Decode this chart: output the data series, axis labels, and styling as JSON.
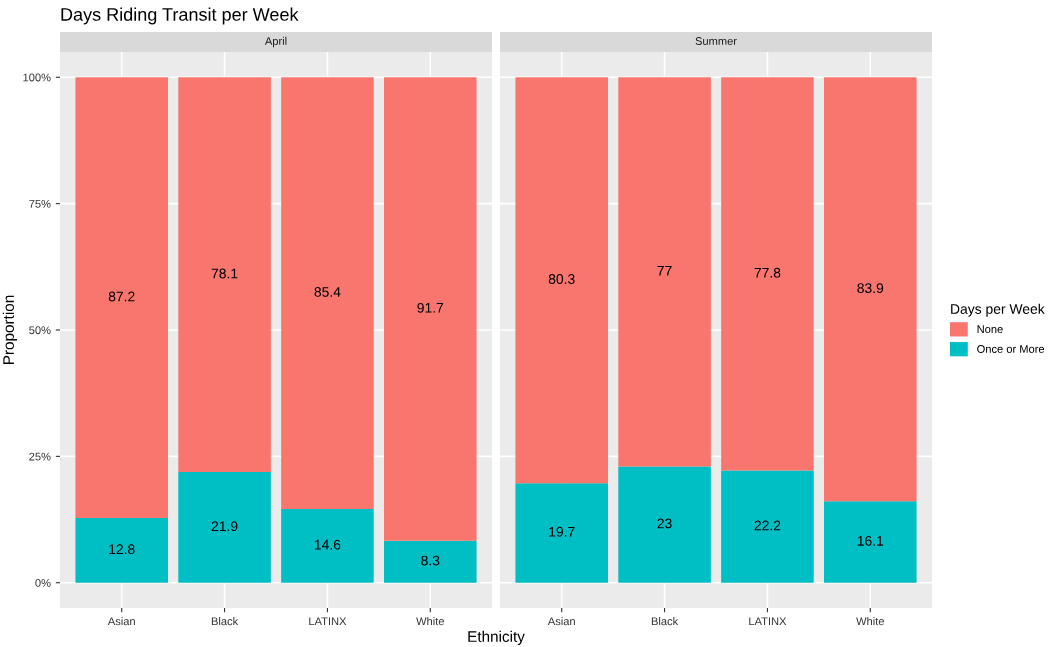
{
  "chart_data": [
    {
      "type": "bar",
      "title": "Days Riding Transit per Week",
      "subtitle": "April",
      "xlabel": "Ethnicity",
      "ylabel": "Proportion",
      "categories": [
        "Asian",
        "Black",
        "LATINX",
        "White"
      ],
      "stacked": true,
      "series": [
        {
          "name": "Once or More",
          "color": "#00bfc4",
          "values": [
            12.8,
            21.9,
            14.6,
            8.3
          ]
        },
        {
          "name": "None",
          "color": "#f8766d",
          "values": [
            87.2,
            78.1,
            85.4,
            91.7
          ]
        }
      ],
      "ylim": [
        -5,
        105
      ],
      "yticks": [
        {
          "value": 0,
          "label": "0%"
        },
        {
          "value": 25,
          "label": "25%"
        },
        {
          "value": 50,
          "label": "50%"
        },
        {
          "value": 75,
          "label": "75%"
        },
        {
          "value": 100,
          "label": "100%"
        }
      ],
      "grid": true,
      "data_labels": true,
      "legend": "right",
      "legend_title": "Days per Week"
    },
    {
      "type": "bar",
      "subtitle": "Summer",
      "categories": [
        "Asian",
        "Black",
        "LATINX",
        "White"
      ],
      "stacked": true,
      "series": [
        {
          "color": "#00bfc4",
          "values": [
            19.7,
            23,
            22.2,
            16.1
          ]
        },
        {
          "color": "#f8766d",
          "values": [
            80.3,
            77,
            77.8,
            83.9
          ]
        }
      ],
      "ylim": [
        -5,
        105
      ],
      "yticks": [
        {
          "value": 0,
          "label": null
        },
        {
          "value": 25,
          "label": null
        },
        {
          "value": 50,
          "label": null
        },
        {
          "value": 75,
          "label": null
        },
        {
          "value": 100,
          "label": null
        }
      ],
      "tick_labels": "x",
      "grid": true,
      "data_labels": true
    }
  ]
}
